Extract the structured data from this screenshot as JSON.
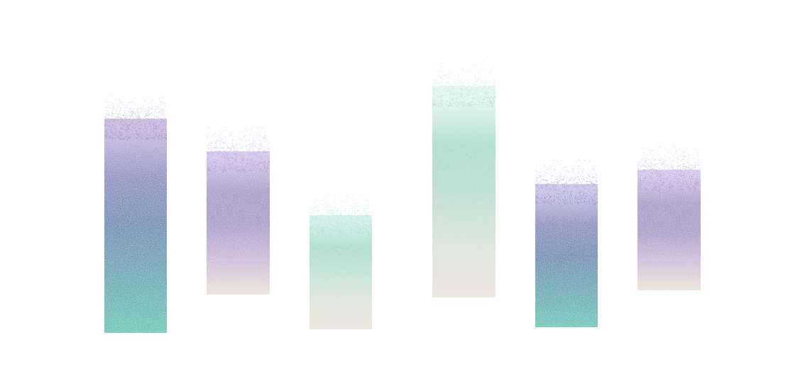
{
  "palette": {
    "teal": "#66c6b6",
    "slate_blue": "#6e8bb5",
    "lavender": "#a899c7",
    "mint": "#a8dccd",
    "cream": "#ece3d9",
    "background": "#ffffff"
  },
  "bars": [
    {
      "id": "bar-1",
      "gradient": [
        "#c9b8e0",
        "#8d8fc2",
        "#6e8bb5",
        "#66a9b4",
        "#66c6b6"
      ]
    },
    {
      "id": "bar-2",
      "gradient": [
        "#d4c6ea",
        "#a899c7",
        "#a899c7",
        "#ccb9d8",
        "#ece3d9"
      ]
    },
    {
      "id": "bar-3",
      "gradient": [
        "#d0efe8",
        "#a8dccd",
        "#bfe1d4",
        "#dce5da",
        "#ece3d9"
      ]
    },
    {
      "id": "bar-4",
      "gradient": [
        "#e6f5f1",
        "#a8dccd",
        "#b9dccf",
        "#d9e3d9",
        "#ece3d9"
      ]
    },
    {
      "id": "bar-5",
      "gradient": [
        "#c9c3e6",
        "#8d8fc2",
        "#6e8bb5",
        "#66a9b4",
        "#66c6b6"
      ]
    },
    {
      "id": "bar-6",
      "gradient": [
        "#d4c6ea",
        "#a899c7",
        "#a899c7",
        "#cdbcd8",
        "#ece3d9"
      ]
    }
  ]
}
